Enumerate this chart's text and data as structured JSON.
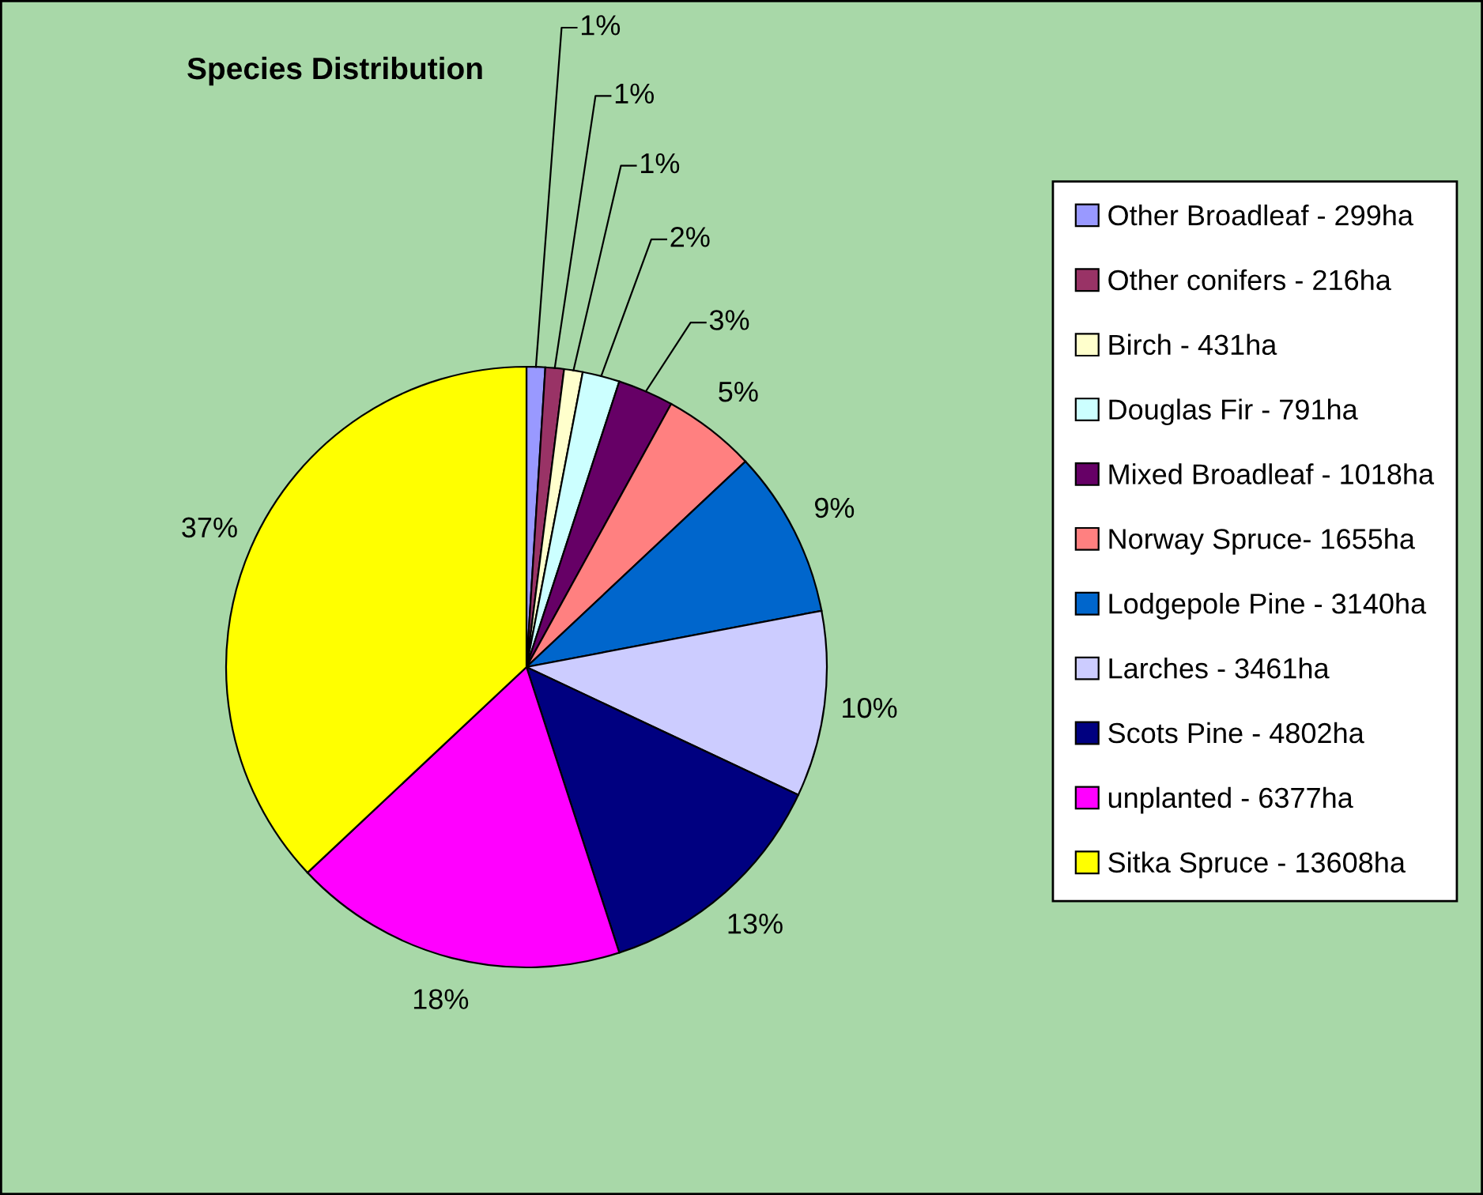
{
  "chart_data": {
    "type": "pie",
    "title": "Species Distribution",
    "categories": [
      "Other Broadleaf - 299ha",
      "Other conifers - 216ha",
      "Birch - 431ha",
      "Douglas Fir - 791ha",
      "Mixed Broadleaf - 1018ha",
      "Norway Spruce- 1655ha",
      "Lodgepole Pine - 3140ha",
      "Larches - 3461ha",
      "Scots Pine - 4802ha",
      "unplanted - 6377ha",
      "Sitka Spruce - 13608ha"
    ],
    "values": [
      1,
      1,
      1,
      2,
      3,
      5,
      9,
      10,
      13,
      18,
      37
    ],
    "colors": [
      "#9999ff",
      "#993366",
      "#ffffcc",
      "#ccffff",
      "#660066",
      "#ff8080",
      "#0066cc",
      "#ccccff",
      "#000080",
      "#ff00ff",
      "#ffff00"
    ],
    "value_labels": [
      "1%",
      "1%",
      "1%",
      "2%",
      "3%",
      "5%",
      "9%",
      "10%",
      "13%",
      "18%",
      "37%"
    ],
    "legend": "right"
  }
}
